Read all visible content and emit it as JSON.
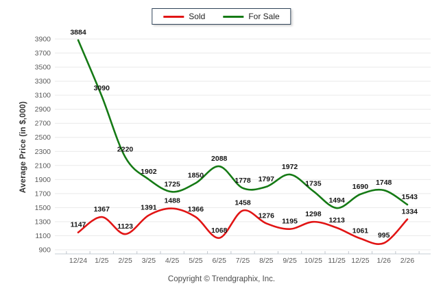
{
  "legend": {
    "position": "top-center",
    "items": [
      {
        "label": "Sold",
        "color": "#e11414"
      },
      {
        "label": "For Sale",
        "color": "#157a15"
      }
    ]
  },
  "chart_data": {
    "type": "line",
    "title": "",
    "xlabel": "",
    "ylabel": "Average Price (in $,000)",
    "ylim": [
      900,
      3900
    ],
    "ytick_step": 200,
    "grid": true,
    "legend_position": "top-center",
    "categories": [
      "12/24",
      "1/25",
      "2/25",
      "3/25",
      "4/25",
      "5/25",
      "6/25",
      "7/25",
      "8/25",
      "9/25",
      "10/25",
      "11/25",
      "12/25",
      "1/26",
      "2/26"
    ],
    "series": [
      {
        "name": "Sold",
        "color": "#e11414",
        "values": [
          1147,
          1367,
          1123,
          1391,
          1488,
          1366,
          1068,
          1458,
          1276,
          1195,
          1298,
          1213,
          1061,
          995,
          1334
        ]
      },
      {
        "name": "For Sale",
        "color": "#157a15",
        "values": [
          3884,
          3090,
          2220,
          1902,
          1725,
          1850,
          2088,
          1778,
          1797,
          1972,
          1735,
          1494,
          1690,
          1748,
          1543
        ]
      }
    ]
  },
  "footer": {
    "copyright": "Copyright © Trendgraphix, Inc."
  },
  "colors": {
    "grid_line": "#e9e9e9",
    "axis_line": "#c6ccd4",
    "tick_mark": "#c0c6cd",
    "tick_text": "#595959",
    "data_label_text": "#141414",
    "legend_border": "#2e4257",
    "background": "#ffffff"
  }
}
